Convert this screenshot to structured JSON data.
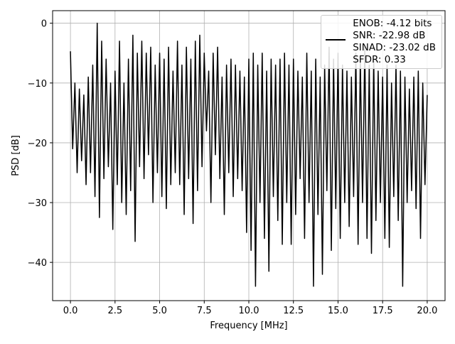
{
  "chart_data": {
    "type": "line",
    "xlabel": "Frequency [MHz]",
    "ylabel": "PSD [dB]",
    "x": [
      0,
      0.125,
      0.25,
      0.375,
      0.5,
      0.625,
      0.75,
      0.875,
      1,
      1.125,
      1.25,
      1.375,
      1.5,
      1.625,
      1.75,
      1.875,
      2,
      2.125,
      2.25,
      2.375,
      2.5,
      2.625,
      2.75,
      2.875,
      3,
      3.125,
      3.25,
      3.375,
      3.5,
      3.625,
      3.75,
      3.875,
      4,
      4.125,
      4.25,
      4.375,
      4.5,
      4.625,
      4.75,
      4.875,
      5,
      5.125,
      5.25,
      5.375,
      5.5,
      5.625,
      5.75,
      5.875,
      6,
      6.125,
      6.25,
      6.375,
      6.5,
      6.625,
      6.75,
      6.875,
      7,
      7.125,
      7.25,
      7.375,
      7.5,
      7.625,
      7.75,
      7.875,
      8,
      8.125,
      8.25,
      8.375,
      8.5,
      8.625,
      8.75,
      8.875,
      9,
      9.125,
      9.25,
      9.375,
      9.5,
      9.625,
      9.75,
      9.875,
      10,
      10.125,
      10.25,
      10.375,
      10.5,
      10.625,
      10.75,
      10.875,
      11,
      11.125,
      11.25,
      11.375,
      11.5,
      11.625,
      11.75,
      11.875,
      12,
      12.125,
      12.25,
      12.375,
      12.5,
      12.625,
      12.75,
      12.875,
      13,
      13.125,
      13.25,
      13.375,
      13.5,
      13.625,
      13.75,
      13.875,
      14,
      14.125,
      14.25,
      14.375,
      14.5,
      14.625,
      14.75,
      14.875,
      15,
      15.125,
      15.25,
      15.375,
      15.5,
      15.625,
      15.75,
      15.875,
      16,
      16.125,
      16.25,
      16.375,
      16.5,
      16.625,
      16.75,
      16.875,
      17,
      17.125,
      17.25,
      17.375,
      17.5,
      17.625,
      17.75,
      17.875,
      18,
      18.125,
      18.25,
      18.375,
      18.5,
      18.625,
      18.75,
      18.875,
      19,
      19.125,
      19.25,
      19.375,
      19.5,
      19.625,
      19.75,
      19.875,
      20
    ],
    "series": [
      {
        "name": "ENOB: -4.12 bits\nSNR: -22.98 dB\nSINAD: -23.02 dB\nSFDR: 0.33",
        "color": "#000000",
        "values": [
          -4.7,
          -21,
          -10,
          -25,
          -11,
          -23,
          -12,
          -27,
          -9,
          -25,
          -7,
          -29,
          0,
          -32.5,
          -3,
          -26,
          -6,
          -24,
          -10,
          -34.5,
          -8,
          -27,
          -3,
          -30,
          -10,
          -32,
          -6,
          -28,
          -2,
          -36.5,
          -5,
          -24,
          -3,
          -26,
          -5,
          -22,
          -4,
          -30,
          -7,
          -25,
          -5,
          -29,
          -6,
          -31,
          -4,
          -27,
          -8,
          -25,
          -3,
          -27,
          -7,
          -32,
          -4,
          -26,
          -6,
          -33.5,
          -3,
          -28,
          -2,
          -24,
          -5,
          -18,
          -8,
          -30,
          -5,
          -22,
          -4,
          -26,
          -9,
          -32,
          -7,
          -25,
          -6,
          -29,
          -7,
          -26,
          -8,
          -28,
          -9,
          -35,
          -6,
          -38,
          -5,
          -44,
          -7,
          -30,
          -5,
          -36,
          -8,
          -41.5,
          -6,
          -29,
          -7,
          -33,
          -6,
          -37,
          -5,
          -30,
          -7,
          -37,
          -6,
          -32,
          -8,
          -26,
          -9,
          -36,
          -5,
          -30,
          -8,
          -44,
          -6,
          -32,
          -9,
          -42,
          -7,
          -28,
          -4,
          -38,
          -6,
          -31,
          -5,
          -36,
          -7,
          -30,
          -8,
          -34,
          -9,
          -29,
          -5,
          -37,
          -6,
          -30,
          -4,
          -36,
          -7,
          -38.5,
          -6,
          -33,
          -8,
          -30,
          -9,
          -36,
          -7,
          -37.5,
          -10,
          -29,
          -7,
          -33,
          -8,
          -44,
          -9,
          -30,
          -11,
          -28,
          -9,
          -31,
          -8,
          -36,
          -10,
          -27,
          -12
        ]
      }
    ],
    "xlim": [
      -1,
      21
    ],
    "ylim": [
      -46.4,
      2.1
    ],
    "xticks": [
      {
        "value": 0,
        "label": "0.0"
      },
      2.5,
      {
        "value": 5,
        "label": "5.0"
      },
      7.5,
      {
        "value": 10,
        "label": "10.0"
      },
      12.5,
      {
        "value": 15,
        "label": "15.0"
      },
      17.5,
      {
        "value": 20,
        "label": "20.0"
      }
    ],
    "yticks": [
      0,
      {
        "value": -10,
        "label": "−10"
      },
      {
        "value": -20,
        "label": "−20"
      },
      {
        "value": -30,
        "label": "−30"
      },
      {
        "value": -40,
        "label": "−40"
      }
    ],
    "grid": true,
    "legend": "upper right"
  }
}
